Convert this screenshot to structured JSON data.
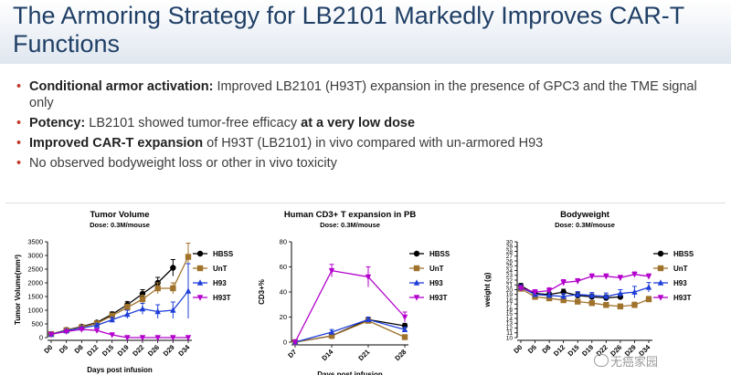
{
  "slide": {
    "title": "The Armoring Strategy for LB2101 Markedly Improves CAR-T Functions",
    "bullets": [
      {
        "bold": "Conditional armor activation:",
        "text": " Improved LB2101 (H93T) expansion in the presence of GPC3 and the TME signal only",
        "bold2": "",
        "text2": ""
      },
      {
        "bold": "Potency:",
        "text": " LB2101 showed tumor-free efficacy ",
        "bold2": "at a very low dose",
        "text2": ""
      },
      {
        "bold": "Improved CAR-T expansion",
        "text": " of H93T (LB2101) in vivo compared with un-armored H93",
        "bold2": "",
        "text2": ""
      },
      {
        "bold": "",
        "text": "No observed bodyweight loss or other in vivo toxicity",
        "bold2": "",
        "text2": ""
      }
    ]
  },
  "watermark": "无癌家园",
  "chart_data": [
    {
      "type": "line",
      "title": "Tumor Volume",
      "subtitle": "Dose: 0.3M/mouse",
      "xlabel": "Days post infusion",
      "ylabel": "Tumor Volume(mm³)",
      "categories": [
        "D0",
        "D5",
        "D8",
        "D12",
        "D15",
        "D19",
        "D22",
        "D26",
        "D29",
        "D34"
      ],
      "ylim": [
        0,
        3500
      ],
      "yticks": [
        "0",
        "500",
        "1000",
        "1500",
        "2000",
        "2500",
        "3000",
        "3500"
      ],
      "series": [
        {
          "name": "HBSS",
          "color": "#000000",
          "marker": "circle",
          "values": [
            130,
            280,
            400,
            550,
            850,
            1200,
            1600,
            2000,
            2550,
            null
          ],
          "err": [
            20,
            30,
            40,
            60,
            90,
            120,
            150,
            200,
            300,
            null
          ]
        },
        {
          "name": "UnT",
          "color": "#a0732c",
          "marker": "square",
          "values": [
            130,
            270,
            380,
            520,
            800,
            1100,
            1400,
            1800,
            1800,
            2950
          ],
          "err": [
            20,
            30,
            40,
            60,
            90,
            120,
            150,
            200,
            200,
            500
          ]
        },
        {
          "name": "H93",
          "color": "#1f3fd8",
          "marker": "triangle",
          "values": [
            120,
            250,
            350,
            450,
            650,
            850,
            1050,
            950,
            1000,
            1700
          ],
          "err": [
            20,
            30,
            40,
            60,
            90,
            150,
            200,
            250,
            300,
            1000
          ]
        },
        {
          "name": "H93T",
          "color": "#b300cc",
          "marker": "triangle-down",
          "values": [
            120,
            220,
            300,
            260,
            100,
            0,
            0,
            0,
            0,
            0
          ],
          "err": [
            20,
            30,
            40,
            50,
            30,
            0,
            0,
            0,
            0,
            0
          ]
        }
      ]
    },
    {
      "type": "line",
      "title": "Human CD3+ T expansion in PB",
      "subtitle": "Dose: 0.3M/mouse",
      "xlabel": "Days post infusion",
      "ylabel": "CD3+%",
      "categories": [
        "D7",
        "D14",
        "D21",
        "D28"
      ],
      "ylim": [
        0,
        80
      ],
      "yticks": [
        "0",
        "20",
        "40",
        "60",
        "80"
      ],
      "series": [
        {
          "name": "HBSS",
          "color": "#000000",
          "marker": "circle",
          "values": [
            0,
            5,
            18,
            13
          ],
          "err": [
            0,
            1,
            2,
            2
          ]
        },
        {
          "name": "UnT",
          "color": "#a0732c",
          "marker": "square",
          "values": [
            0,
            5,
            17,
            4
          ],
          "err": [
            0,
            1,
            2,
            1
          ]
        },
        {
          "name": "H93",
          "color": "#1f3fd8",
          "marker": "triangle",
          "values": [
            0,
            8,
            18,
            10
          ],
          "err": [
            0,
            2,
            2,
            2
          ]
        },
        {
          "name": "H93T",
          "color": "#b300cc",
          "marker": "triangle-down",
          "values": [
            0,
            57,
            52,
            20
          ],
          "err": [
            0,
            5,
            8,
            4
          ]
        }
      ]
    },
    {
      "type": "line",
      "title": "Bodyweight",
      "subtitle": "Dose: 0.3M/mouse",
      "xlabel": "",
      "ylabel": "weight (g)",
      "categories": [
        "D0",
        "D5",
        "D8",
        "D12",
        "D15",
        "D19",
        "D22",
        "D26",
        "D29",
        "D34"
      ],
      "ylim": [
        10,
        30
      ],
      "yticks": [
        "10",
        "11",
        "12",
        "13",
        "14",
        "15",
        "16",
        "17",
        "18",
        "19",
        "20",
        "21",
        "22",
        "23",
        "24",
        "25",
        "26",
        "27",
        "28",
        "29",
        "30"
      ],
      "series": [
        {
          "name": "HBSS",
          "color": "#000000",
          "marker": "circle",
          "values": [
            20.8,
            19.2,
            19.0,
            19.5,
            18.8,
            18.5,
            18.3,
            18.5,
            null,
            null
          ],
          "err": [
            0.5,
            0.5,
            0.5,
            0.6,
            0.6,
            0.6,
            0.6,
            0.6,
            null,
            null
          ]
        },
        {
          "name": "UnT",
          "color": "#a0732c",
          "marker": "square",
          "values": [
            20.2,
            18.5,
            18.2,
            17.8,
            17.5,
            17.2,
            16.8,
            16.5,
            16.8,
            18.0
          ],
          "err": [
            0.5,
            0.5,
            0.5,
            0.5,
            0.5,
            0.5,
            0.5,
            0.5,
            0.6,
            0.6
          ]
        },
        {
          "name": "H93",
          "color": "#1f3fd8",
          "marker": "triangle",
          "values": [
            20.5,
            19.0,
            18.8,
            18.6,
            19.0,
            18.8,
            18.6,
            19.2,
            19.5,
            20.5
          ],
          "err": [
            0.5,
            0.5,
            0.5,
            0.6,
            0.6,
            0.6,
            0.7,
            0.8,
            1.2,
            1.0
          ]
        },
        {
          "name": "H93T",
          "color": "#b300cc",
          "marker": "triangle-down",
          "values": [
            20.3,
            19.5,
            19.8,
            21.5,
            21.8,
            22.8,
            22.8,
            22.5,
            23.2,
            22.8
          ],
          "err": [
            0.5,
            0.5,
            0.6,
            0.6,
            0.5,
            0.5,
            0.5,
            0.5,
            0.5,
            0.5
          ]
        }
      ]
    }
  ]
}
